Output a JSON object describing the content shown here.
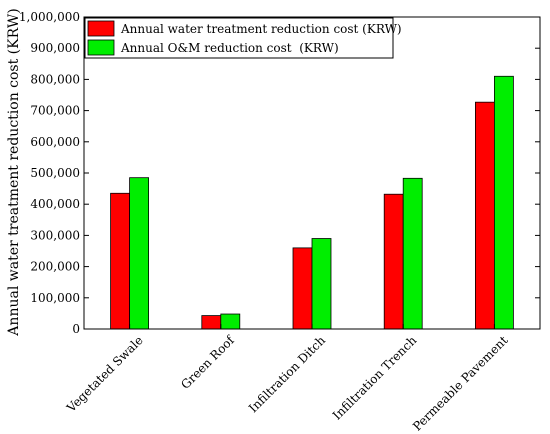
{
  "chart_data": {
    "type": "bar",
    "categories": [
      "Vegetated Swale",
      "Green Roof",
      "Infiltration Ditch",
      "Infiltration Trench",
      "Permeable Pavement"
    ],
    "series": [
      {
        "name": "Annual water treatment reduction cost (KRW)",
        "color": "#ff0000",
        "values": [
          435000,
          43000,
          260000,
          432000,
          727000
        ]
      },
      {
        "name": "Annual O&M reduction cost  (KRW)",
        "color": "#00ee00",
        "values": [
          485000,
          48000,
          290000,
          483000,
          810000
        ]
      }
    ],
    "ylabel": "Annual water treatment reduction cost (KRW)",
    "ylim": [
      0,
      1000000
    ],
    "yticks": [
      0,
      100000,
      200000,
      300000,
      400000,
      500000,
      600000,
      700000,
      800000,
      900000,
      1000000
    ],
    "ytick_labels": [
      "0",
      "100,000",
      "200,000",
      "300,000",
      "400,000",
      "500,000",
      "600,000",
      "700,000",
      "800,000",
      "900,000",
      "1,000,000"
    ],
    "grid": false,
    "legend": "top-left"
  }
}
